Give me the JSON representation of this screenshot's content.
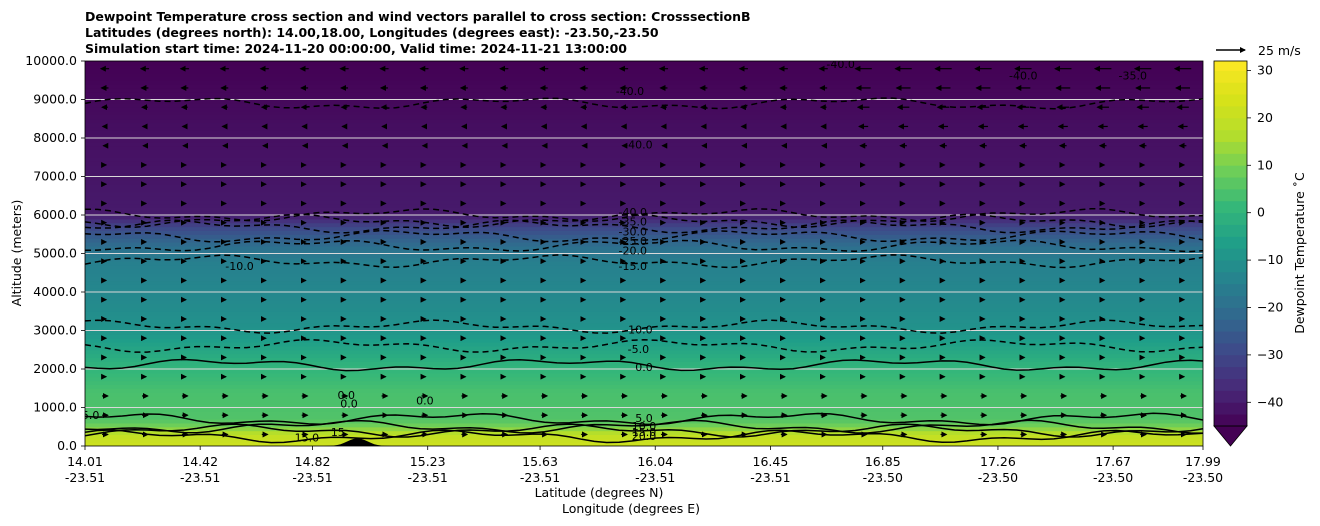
{
  "chart_data": {
    "type": "heatmap",
    "title_lines": [
      "Dewpoint Temperature cross section and wind vectors parallel to cross section: CrosssectionB",
      "Latitudes (degrees north): 14.00,18.00, Longitudes (degrees east): -23.50,-23.50",
      "Simulation start time: 2024-11-20 00:00:00, Valid time: 2024-11-21 13:00:00"
    ],
    "xlabel": "Latitude (degrees N)",
    "xlabel2": "Longitude (degrees E)",
    "ylabel": "Altitude (meters)",
    "ylim": [
      0,
      10000
    ],
    "y_ticks": [
      0,
      1000,
      2000,
      3000,
      4000,
      5000,
      6000,
      7000,
      8000,
      9000,
      10000
    ],
    "y_tick_labels": [
      "0.0",
      "1000.0",
      "2000.0",
      "3000.0",
      "4000.0",
      "5000.0",
      "6000.0",
      "7000.0",
      "8000.0",
      "9000.0",
      "10000.0"
    ],
    "x_ticks": [
      {
        "lat": "14.01",
        "lon": "-23.51"
      },
      {
        "lat": "14.42",
        "lon": "-23.51"
      },
      {
        "lat": "14.82",
        "lon": "-23.51"
      },
      {
        "lat": "15.23",
        "lon": "-23.51"
      },
      {
        "lat": "15.63",
        "lon": "-23.51"
      },
      {
        "lat": "16.04",
        "lon": "-23.51"
      },
      {
        "lat": "16.45",
        "lon": "-23.51"
      },
      {
        "lat": "16.85",
        "lon": "-23.50"
      },
      {
        "lat": "17.26",
        "lon": "-23.50"
      },
      {
        "lat": "17.67",
        "lon": "-23.50"
      },
      {
        "lat": "17.99",
        "lon": "-23.50"
      }
    ],
    "colorbar": {
      "label": "Dewpoint Temperature ˚C",
      "range": [
        -45,
        32
      ],
      "ticks": [
        -40,
        -30,
        -20,
        -10,
        0,
        10,
        20,
        30
      ],
      "tick_labels": [
        "−40",
        "−30",
        "−20",
        "−10",
        "0",
        "10",
        "20",
        "30"
      ],
      "extend": "min",
      "colormap": "viridis"
    },
    "quiver_key_label": "25 m/s",
    "contours": [
      {
        "value": -40,
        "altitude_m": 8900,
        "style": "dashed"
      },
      {
        "value": -40,
        "altitude_m": 6000,
        "style": "dashed"
      },
      {
        "value": -35,
        "altitude_m": 5850,
        "style": "dashed"
      },
      {
        "value": -30,
        "altitude_m": 5700,
        "style": "dashed"
      },
      {
        "value": -25,
        "altitude_m": 5450,
        "style": "dashed"
      },
      {
        "value": -20,
        "altitude_m": 5200,
        "style": "dashed"
      },
      {
        "value": -15,
        "altitude_m": 4800,
        "style": "dashed"
      },
      {
        "value": -10,
        "altitude_m": 3100,
        "style": "dashed"
      },
      {
        "value": -5,
        "altitude_m": 2600,
        "style": "dashed"
      },
      {
        "value": 0,
        "altitude_m": 2100,
        "style": "solid"
      },
      {
        "value": 5,
        "altitude_m": 700,
        "style": "solid"
      },
      {
        "value": 10,
        "altitude_m": 500,
        "style": "solid"
      },
      {
        "value": 15,
        "altitude_m": 400,
        "style": "solid"
      },
      {
        "value": 20,
        "altitude_m": 250,
        "style": "solid"
      }
    ],
    "contour_labels": [
      {
        "text": "-40.0",
        "x_deg": 15.95,
        "alt": 9200
      },
      {
        "text": "-40.0",
        "x_deg": 15.98,
        "alt": 7800
      },
      {
        "text": "-40.0",
        "x_deg": 16.7,
        "alt": 9900
      },
      {
        "text": "-40.0",
        "x_deg": 17.35,
        "alt": 9600
      },
      {
        "text": "-35.0",
        "x_deg": 17.74,
        "alt": 9600
      },
      {
        "text": "-40.0",
        "x_deg": 15.96,
        "alt": 6050
      },
      {
        "text": "-35.0",
        "x_deg": 15.96,
        "alt": 5800
      },
      {
        "text": "-30.0",
        "x_deg": 15.96,
        "alt": 5550
      },
      {
        "text": "-25.0",
        "x_deg": 15.96,
        "alt": 5300
      },
      {
        "text": "-20.0",
        "x_deg": 15.96,
        "alt": 5050
      },
      {
        "text": "-15.0",
        "x_deg": 15.96,
        "alt": 4650
      },
      {
        "text": "-10.0",
        "x_deg": 14.56,
        "alt": 4650
      },
      {
        "text": "-10.0",
        "x_deg": 15.98,
        "alt": 3000
      },
      {
        "text": "-5.0",
        "x_deg": 15.98,
        "alt": 2500
      },
      {
        "text": "0.0",
        "x_deg": 16.0,
        "alt": 2020
      },
      {
        "text": "0.0",
        "x_deg": 14.94,
        "alt": 1300
      },
      {
        "text": "0.0",
        "x_deg": 14.95,
        "alt": 1080
      },
      {
        "text": "0.0",
        "x_deg": 15.22,
        "alt": 1150
      },
      {
        "text": "5.0",
        "x_deg": 14.03,
        "alt": 780
      },
      {
        "text": "15.0",
        "x_deg": 14.8,
        "alt": 190
      },
      {
        "text": "15",
        "x_deg": 14.91,
        "alt": 340
      },
      {
        "text": "5.0",
        "x_deg": 16.0,
        "alt": 700
      },
      {
        "text": "10.0",
        "x_deg": 16.0,
        "alt": 500
      },
      {
        "text": "15.0",
        "x_deg": 16.0,
        "alt": 340
      },
      {
        "text": "20.0",
        "x_deg": 16.0,
        "alt": 230
      }
    ],
    "terrain": {
      "peak_lat": 14.98,
      "peak_alt_m": 200
    },
    "wind": {
      "upper_direction": "southward",
      "lower_direction": "northward",
      "upper_speed_mps": 15,
      "lower_speed_mps": 5
    }
  }
}
